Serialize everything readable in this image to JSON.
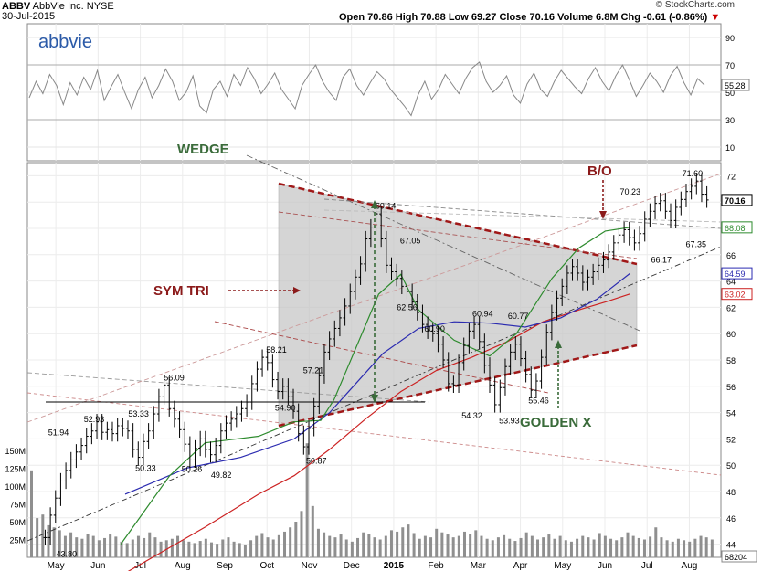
{
  "header": {
    "symbol": "ABBV",
    "company": "AbbVie Inc.",
    "exchange": "NYSE",
    "date": "30-Jul-2015",
    "credit": "© StockCharts.com",
    "stats": "Open 70.86  High 70.88  Low 69.27  Close 70.16  Volume 6.8M  Chg -0.61 (-0.86%)",
    "stats_arrow": "▼"
  },
  "logo_text": "abbvie",
  "colors": {
    "price": "#000000",
    "ma_short": "#2e8b2e",
    "ma_mid": "#2b2bb0",
    "ma_long": "#cc2222",
    "wedge": "#a01818",
    "shade": "#c7c7c7",
    "rsi": "#888888",
    "annotation_red": "#8b1a1a",
    "annotation_green": "#3a6b3a",
    "volume": "#8f8f8f"
  },
  "chart_data": {
    "type": "line",
    "title": "ABBV AbbVie Inc. NYSE",
    "x_labels": [
      "May",
      "Jun",
      "Jul",
      "Aug",
      "Sep",
      "Oct",
      "Nov",
      "Dec",
      "2015",
      "Feb",
      "Mar",
      "Apr",
      "May",
      "Jun",
      "Jul",
      "Aug"
    ],
    "price_axis": {
      "ylim": [
        43,
        73
      ],
      "ticks": [
        44,
        46,
        48,
        50,
        52,
        54,
        56,
        58,
        60,
        62,
        64,
        66,
        68,
        70,
        72
      ]
    },
    "rsi_axis": {
      "ylim": [
        0,
        100
      ],
      "ticks": [
        10,
        30,
        50,
        70,
        90
      ],
      "last_value": "55.28",
      "levels": [
        30,
        70
      ]
    },
    "volume_axis": {
      "ticks": [
        "25M",
        "50M",
        "75M",
        "100M",
        "125M",
        "150M"
      ],
      "last_value": "68204"
    },
    "right_tags": [
      {
        "label": "70.16",
        "value": 70.16,
        "color": "#000000"
      },
      {
        "label": "68.08",
        "value": 68.08,
        "color": "#2e8b2e"
      },
      {
        "label": "64.59",
        "value": 64.59,
        "color": "#2b2bb0"
      },
      {
        "label": "63.02",
        "value": 63.02,
        "color": "#cc2222"
      }
    ],
    "price_close": [
      44.5,
      46.2,
      47.5,
      48.8,
      49.6,
      50.4,
      51.0,
      51.5,
      52.2,
      52.6,
      53.3,
      52.5,
      52.7,
      52.4,
      53.0,
      52.8,
      52.6,
      51.2,
      50.6,
      51.8,
      52.6,
      53.9,
      55.2,
      56.1,
      54.3,
      53.5,
      52.7,
      51.6,
      50.4,
      51.3,
      52.0,
      51.2,
      50.8,
      51.5,
      52.6,
      53.2,
      53.5,
      53.9,
      54.3,
      54.8,
      56.2,
      57.3,
      58.2,
      57.8,
      56.5,
      55.6,
      56.0,
      55.2,
      54.1,
      52.4,
      51.4,
      52.8,
      54.5,
      56.8,
      58.6,
      59.6,
      60.4,
      61.2,
      62.1,
      63.2,
      64.3,
      65.3,
      67.2,
      68.1,
      69.1,
      67.2,
      65.2,
      64.7,
      64.2,
      63.6,
      63.2,
      62.4,
      61.6,
      60.7,
      60.2,
      60.0,
      59.2,
      58.0,
      56.2,
      56.1,
      57.8,
      59.1,
      60.2,
      60.7,
      59.4,
      57.6,
      56.1,
      54.6,
      55.9,
      57.5,
      58.6,
      59.2,
      58.1,
      56.9,
      55.7,
      56.4,
      58.2,
      60.1,
      61.6,
      62.7,
      63.6,
      64.6,
      65.1,
      64.6,
      63.9,
      64.3,
      64.7,
      65.2,
      65.6,
      66.2,
      66.9,
      67.5,
      67.9,
      67.3,
      66.9,
      67.6,
      68.7,
      69.3,
      69.9,
      70.1,
      69.3,
      68.6,
      69.6,
      70.2,
      70.8,
      71.2,
      71.6,
      70.6,
      70.16
    ],
    "x_start_day": 105,
    "x_step_days": 3.3,
    "ma_short": [
      [
        105,
        44.0
      ],
      [
        160,
        49.2
      ],
      [
        200,
        51.7
      ],
      [
        260,
        52.2
      ],
      [
        300,
        53.3
      ],
      [
        330,
        53.4
      ],
      [
        345,
        55.0
      ],
      [
        395,
        63.0
      ],
      [
        420,
        64.5
      ],
      [
        440,
        61.8
      ],
      [
        480,
        59.5
      ],
      [
        520,
        58.3
      ],
      [
        550,
        60.0
      ],
      [
        590,
        64.2
      ],
      [
        620,
        66.5
      ],
      [
        650,
        67.8
      ],
      [
        678,
        68.08
      ]
    ],
    "ma_mid": [
      [
        110,
        47.8
      ],
      [
        180,
        49.8
      ],
      [
        240,
        50.6
      ],
      [
        300,
        52.0
      ],
      [
        340,
        54.0
      ],
      [
        400,
        58.5
      ],
      [
        440,
        60.4
      ],
      [
        480,
        60.9
      ],
      [
        520,
        60.8
      ],
      [
        560,
        60.5
      ],
      [
        600,
        61.2
      ],
      [
        640,
        62.6
      ],
      [
        678,
        64.59
      ]
    ],
    "ma_long": [
      [
        110,
        41.8
      ],
      [
        200,
        45.3
      ],
      [
        260,
        47.8
      ],
      [
        300,
        49.2
      ],
      [
        340,
        51.2
      ],
      [
        380,
        53.5
      ],
      [
        420,
        55.6
      ],
      [
        460,
        57.2
      ],
      [
        500,
        58.2
      ],
      [
        540,
        59.4
      ],
      [
        580,
        60.9
      ],
      [
        620,
        61.8
      ],
      [
        650,
        62.4
      ],
      [
        678,
        63.02
      ]
    ],
    "rsi": [
      46,
      58,
      49,
      63,
      55,
      41,
      57,
      48,
      61,
      52,
      66,
      44,
      54,
      63,
      50,
      38,
      52,
      61,
      46,
      55,
      67,
      58,
      44,
      50,
      62,
      40,
      35,
      52,
      58,
      47,
      63,
      55,
      68,
      60,
      49,
      56,
      64,
      52,
      45,
      38,
      55,
      63,
      70,
      58,
      50,
      44,
      61,
      67,
      55,
      48,
      57,
      65,
      60,
      52,
      46,
      40,
      33,
      48,
      58,
      45,
      52,
      63,
      56,
      49,
      60,
      68,
      72,
      58,
      50,
      55,
      62,
      48,
      42,
      56,
      64,
      52,
      47,
      58,
      66,
      60,
      54,
      49,
      60,
      68,
      58,
      51,
      62,
      70,
      59,
      47,
      55,
      64,
      58,
      50,
      62,
      69,
      57,
      48,
      60,
      55.28
    ],
    "volume": [
      122,
      55,
      60,
      45,
      42,
      38,
      30,
      35,
      28,
      26,
      33,
      30,
      24,
      27,
      32,
      29,
      22,
      20,
      25,
      30,
      27,
      35,
      28,
      22,
      24,
      26,
      30,
      24,
      22,
      20,
      23,
      26,
      21,
      19,
      25,
      28,
      22,
      20,
      18,
      24,
      30,
      34,
      28,
      25,
      31,
      36,
      42,
      50,
      65,
      160,
      72,
      40,
      35,
      30,
      28,
      32,
      25,
      22,
      27,
      35,
      33,
      28,
      25,
      30,
      38,
      36,
      42,
      46,
      34,
      26,
      30,
      28,
      40,
      35,
      32,
      28,
      30,
      36,
      33,
      38,
      30,
      26,
      24,
      28,
      31,
      26,
      23,
      27,
      35,
      30,
      25,
      28,
      32,
      26,
      30,
      24,
      22,
      26,
      30,
      28,
      25,
      34,
      30,
      26,
      24,
      28,
      35,
      30,
      27,
      25,
      29,
      42,
      28,
      24,
      22,
      26,
      24,
      22,
      26,
      30,
      28,
      25
    ],
    "price_labels": [
      {
        "text": "69.14",
        "day": 403,
        "y": 69.14,
        "pos": "above"
      },
      {
        "text": "67.05",
        "day": 415,
        "y": 67.05,
        "pos": "right"
      },
      {
        "text": "62.56",
        "day": 427,
        "y": 62.56,
        "pos": "below"
      },
      {
        "text": "60.90",
        "day": 458,
        "y": 60.9,
        "pos": "below"
      },
      {
        "text": "60.94",
        "day": 512,
        "y": 60.94,
        "pos": "above"
      },
      {
        "text": "60.77",
        "day": 552,
        "y": 60.77,
        "pos": "above"
      },
      {
        "text": "54.32",
        "day": 500,
        "y": 54.32,
        "pos": "below"
      },
      {
        "text": "53.93",
        "day": 542,
        "y": 53.93,
        "pos": "below"
      },
      {
        "text": "55.46",
        "day": 575,
        "y": 55.46,
        "pos": "below"
      },
      {
        "text": "58.21",
        "day": 280,
        "y": 58.21,
        "pos": "above"
      },
      {
        "text": "57.21",
        "day": 306,
        "y": 57.21,
        "pos": "right"
      },
      {
        "text": "54.90",
        "day": 290,
        "y": 54.9,
        "pos": "below"
      },
      {
        "text": "50.87",
        "day": 325,
        "y": 50.87,
        "pos": "below"
      },
      {
        "text": "56.09",
        "day": 165,
        "y": 56.09,
        "pos": "above"
      },
      {
        "text": "53.33",
        "day": 125,
        "y": 53.33,
        "pos": "above"
      },
      {
        "text": "52.93",
        "day": 75,
        "y": 52.93,
        "pos": "above"
      },
      {
        "text": "51.94",
        "day": 35,
        "y": 51.94,
        "pos": "above"
      },
      {
        "text": "50.33",
        "day": 133,
        "y": 50.33,
        "pos": "below"
      },
      {
        "text": "50.26",
        "day": 185,
        "y": 50.26,
        "pos": "below"
      },
      {
        "text": "49.82",
        "day": 218,
        "y": 49.82,
        "pos": "below"
      },
      {
        "text": "43.80",
        "day": 44,
        "y": 43.8,
        "pos": "below"
      },
      {
        "text": "70.23",
        "day": 678,
        "y": 70.23,
        "pos": "above"
      },
      {
        "text": "71.60",
        "day": 748,
        "y": 71.6,
        "pos": "above"
      },
      {
        "text": "66.17",
        "day": 713,
        "y": 66.17,
        "pos": "below"
      },
      {
        "text": "67.35",
        "day": 752,
        "y": 67.35,
        "pos": "below"
      }
    ],
    "annotations": {
      "wedge": "WEDGE",
      "sym_tri": "SYM TRI",
      "bo": "B/O",
      "golden_x": "GOLDEN X"
    },
    "grid": true
  }
}
